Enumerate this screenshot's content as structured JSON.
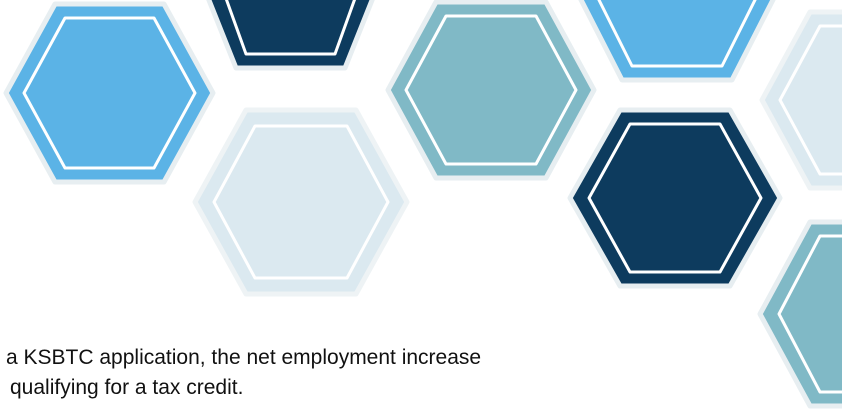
{
  "slide": {
    "text_lines": [
      "a KSBTC application, the net employment increase",
      "qualifying for a tax credit."
    ]
  },
  "decoration": {
    "name": "hexagon-pattern",
    "colors": {
      "light_blue": "#5bb3e6",
      "navy": "#0d3b5e",
      "teal_gray": "#80b9c6",
      "pale_blue": "#dbe9f0",
      "outline": "#ffffff",
      "hex_border": "#e7eef1"
    }
  }
}
